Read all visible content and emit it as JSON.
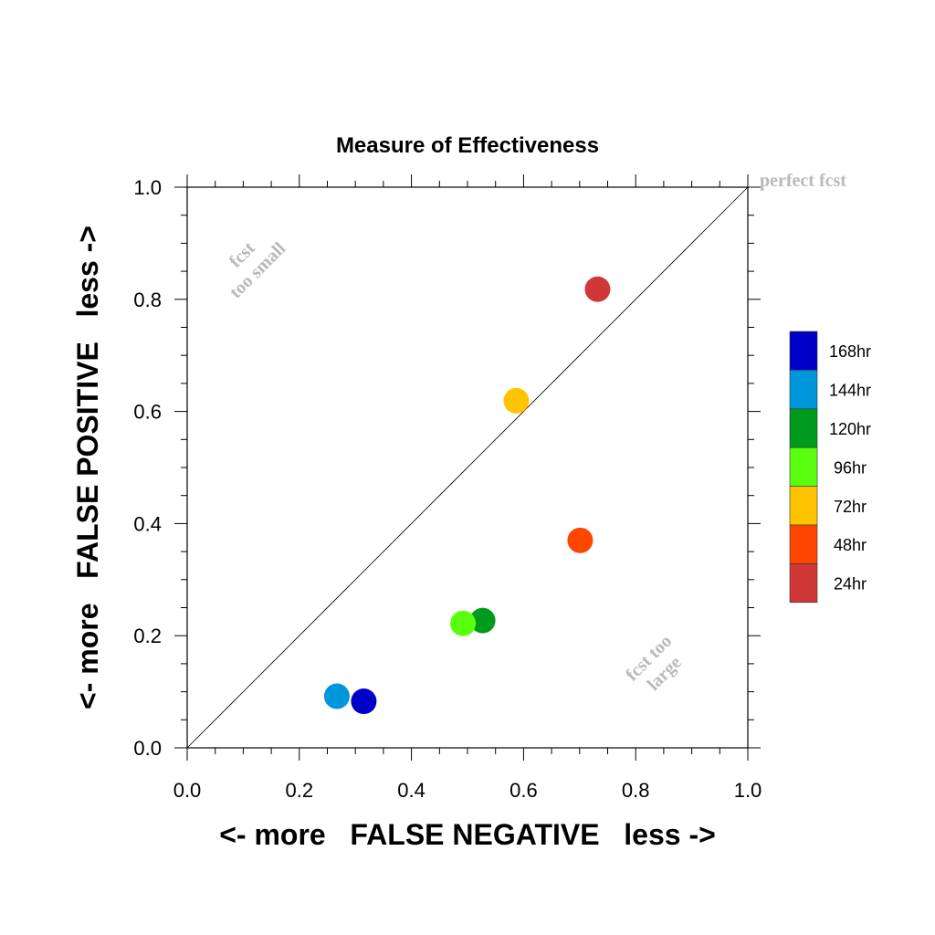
{
  "chart_data": {
    "type": "scatter",
    "title": "Measure of Effectiveness",
    "xlabel": "<- more   FALSE NEGATIVE   less ->",
    "ylabel": "<- more   FALSE POSITIVE   less ->",
    "xlim": [
      0.0,
      1.0
    ],
    "ylim": [
      0.0,
      1.0
    ],
    "xticks": [
      "0.0",
      "0.2",
      "0.4",
      "0.6",
      "0.8",
      "1.0"
    ],
    "yticks": [
      "0.0",
      "0.2",
      "0.4",
      "0.6",
      "0.8",
      "1.0"
    ],
    "grid": false,
    "reference_line": {
      "from": [
        0.0,
        0.0
      ],
      "to": [
        1.0,
        1.0
      ]
    },
    "annotations": {
      "perfect": "perfect fcst",
      "too_small_1": "fcst",
      "too_small_2": "too small",
      "too_large_1": "fcst too",
      "too_large_2": "large"
    },
    "legend_position": "right",
    "series": [
      {
        "name": "168hr",
        "color": "#0000c8",
        "x": 0.315,
        "y": 0.083
      },
      {
        "name": "144hr",
        "color": "#0096dc",
        "x": 0.267,
        "y": 0.092
      },
      {
        "name": "120hr",
        "color": "#009a1e",
        "x": 0.527,
        "y": 0.227
      },
      {
        "name": "96hr",
        "color": "#5aff10",
        "x": 0.492,
        "y": 0.222
      },
      {
        "name": "72hr",
        "color": "#ffc400",
        "x": 0.587,
        "y": 0.619
      },
      {
        "name": "48hr",
        "color": "#ff4600",
        "x": 0.701,
        "y": 0.37
      },
      {
        "name": "24hr",
        "color": "#d03838",
        "x": 0.732,
        "y": 0.818
      }
    ]
  }
}
